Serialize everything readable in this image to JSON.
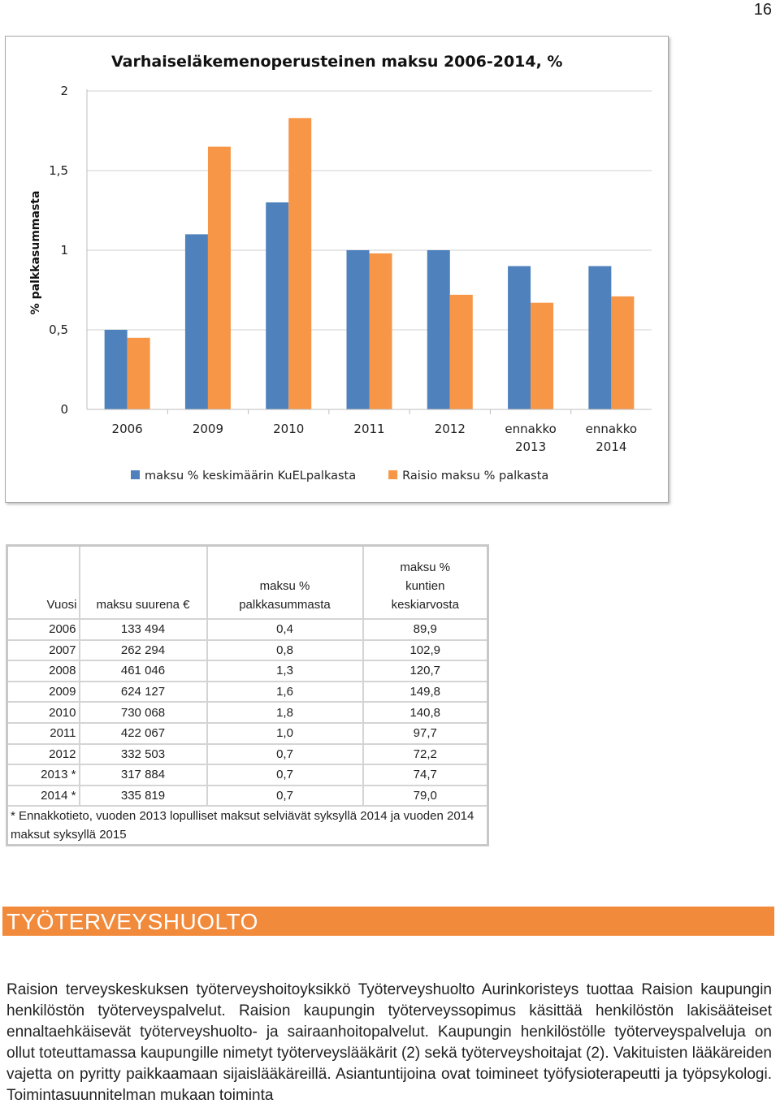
{
  "page_number": "16",
  "chart_data": {
    "type": "bar",
    "title": "Varhaiseläkemenoperusteinen maksu 2006-2014, %",
    "ylabel": "% palkkasummasta",
    "xlabel": "",
    "ylim": [
      0,
      2
    ],
    "yticks": [
      0,
      0.5,
      1,
      1.5,
      2
    ],
    "ytick_labels": [
      "0",
      "0,5",
      "1",
      "1,5",
      "2"
    ],
    "grid": true,
    "legend_position": "bottom",
    "categories": [
      [
        "2006"
      ],
      [
        "2009"
      ],
      [
        "2010"
      ],
      [
        "2011"
      ],
      [
        "2012"
      ],
      [
        "ennakko",
        "2013"
      ],
      [
        "ennakko",
        "2014"
      ]
    ],
    "series": [
      {
        "name": "maksu % keskimäärin KuELpalkasta",
        "color": "#4f81bd",
        "values": [
          0.5,
          1.1,
          1.3,
          1.0,
          1.0,
          0.9,
          0.9
        ]
      },
      {
        "name": "Raisio maksu % palkasta",
        "color": "#f79646",
        "values": [
          0.45,
          1.65,
          1.83,
          0.98,
          0.72,
          0.67,
          0.71
        ]
      }
    ]
  },
  "table": {
    "headers": {
      "year": [
        "Vuosi"
      ],
      "amount": [
        "maksu suurena €"
      ],
      "percent": [
        "maksu %",
        "palkkasummasta"
      ],
      "average": [
        "maksu %",
        "kuntien",
        "keskiarvosta"
      ]
    },
    "rows": [
      [
        "2006",
        "133 494",
        "0,4",
        "89,9"
      ],
      [
        "2007",
        "262 294",
        "0,8",
        "102,9"
      ],
      [
        "2008",
        "461 046",
        "1,3",
        "120,7"
      ],
      [
        "2009",
        "624 127",
        "1,6",
        "149,8"
      ],
      [
        "2010",
        "730 068",
        "1,8",
        "140,8"
      ],
      [
        "2011",
        "422 067",
        "1,0",
        "97,7"
      ],
      [
        "2012",
        "332 503",
        "0,7",
        "72,2"
      ],
      [
        "2013 *",
        "317 884",
        "0,7",
        "74,7"
      ],
      [
        "2014 *",
        "335 819",
        "0,7",
        "79,0"
      ]
    ],
    "note": "* Ennakkotieto, vuoden 2013 lopulliset maksut selviävät syksyllä 2014 ja vuoden 2014 maksut syksyllä 2015"
  },
  "section": {
    "title": "TYÖTERVEYSHUOLTO",
    "color": "#f28a3c",
    "paragraph": "Raision terveyskeskuksen työterveyshoitoyksikkö Työterveyshuolto Aurinkoristeys tuottaa Raision kaupungin henkilöstön työterveyspalvelut. Raision kaupungin työterveyssopimus käsittää henkilöstön lakisääteiset ennaltaehkäisevät työterveyshuolto- ja sairaanhoitopalvelut. Kaupungin henkilöstölle työterveyspalveluja on ollut toteuttamassa kaupungille nimetyt työterveyslääkärit (2) sekä työterveyshoitajat (2). Vakituisten lääkäreiden vajetta on pyritty paikkaamaan sijaislääkäreillä. Asiantuntijoina ovat toimineet työfysioterapeutti ja työpsykologi. Toimintasuunnitelman mukaan toiminta"
  }
}
